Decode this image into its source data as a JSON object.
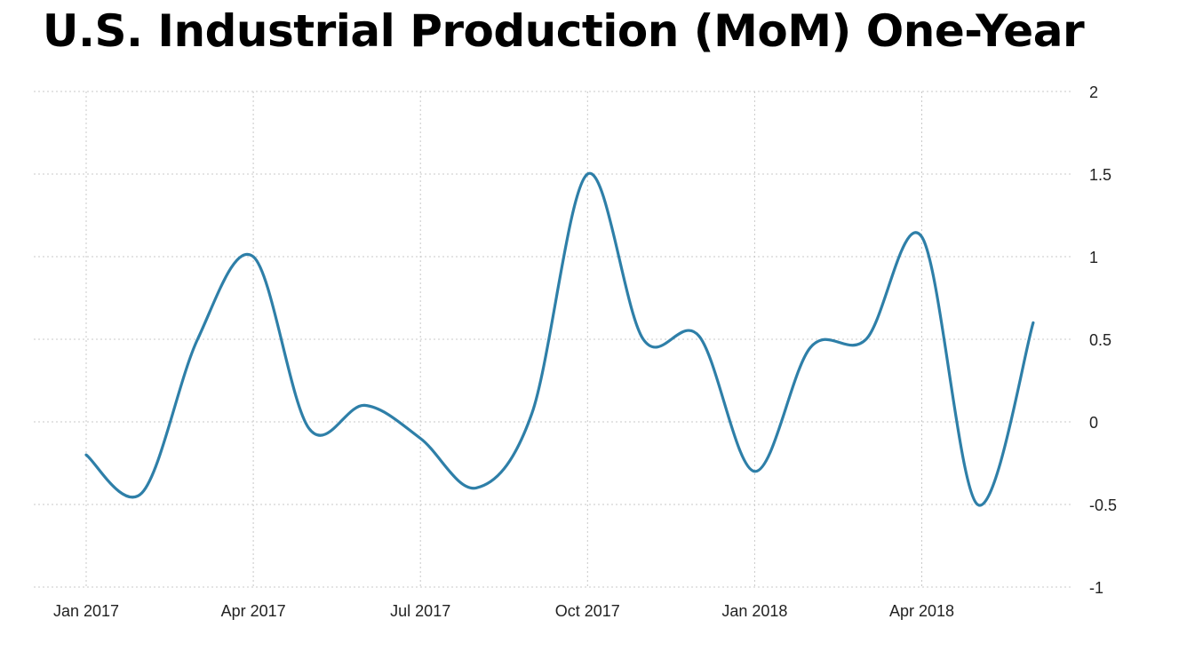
{
  "chart_data": {
    "type": "line",
    "title": "U.S. Industrial Production (MoM) One-Year",
    "xlabel": "",
    "ylabel": "",
    "ylim": [
      -1,
      2
    ],
    "yticks": [
      2,
      1.5,
      1,
      0.5,
      0,
      -0.5,
      -1
    ],
    "ytick_labels": [
      "2",
      "1.5",
      "1",
      "0.5",
      "0",
      "-0.5",
      "-1"
    ],
    "xtick_labels": [
      "Jan 2017",
      "Apr 2017",
      "Jul 2017",
      "Oct 2017",
      "Jan 2018",
      "Apr 2018"
    ],
    "grid": true,
    "y_axis_side": "right",
    "colors": {
      "line": "#2e7fa8"
    },
    "x": [
      "2017-01",
      "2017-02",
      "2017-03",
      "2017-04",
      "2017-05",
      "2017-06",
      "2017-07",
      "2017-08",
      "2017-09",
      "2017-10",
      "2017-11",
      "2017-12",
      "2018-01",
      "2018-02",
      "2018-03",
      "2018-04",
      "2018-05",
      "2018-06"
    ],
    "series": [
      {
        "values": [
          -0.2,
          -0.43,
          0.5,
          1.0,
          -0.04,
          0.1,
          -0.1,
          -0.4,
          0.05,
          1.5,
          0.5,
          0.52,
          -0.3,
          0.45,
          0.5,
          1.12,
          -0.5,
          0.6
        ]
      }
    ]
  }
}
